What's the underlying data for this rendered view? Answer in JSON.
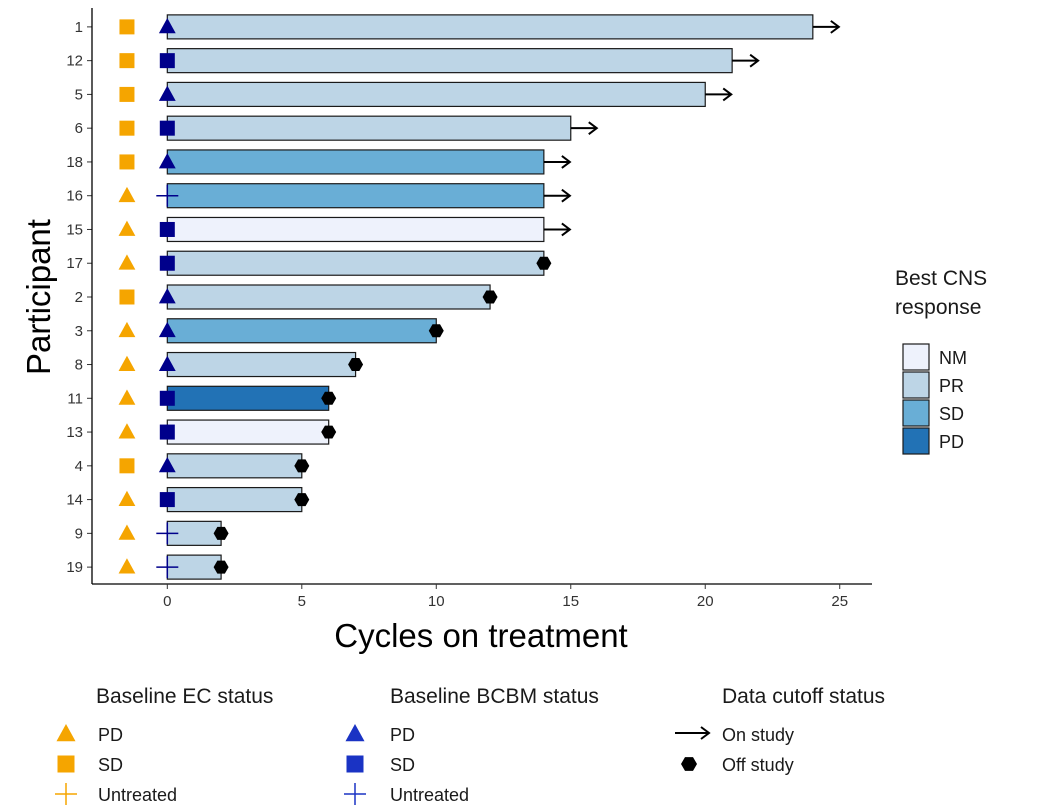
{
  "chart_data": {
    "type": "bar",
    "orientation": "horizontal",
    "xlabel": "Cycles on treatment",
    "ylabel": "Participant",
    "xlim": [
      -2.8,
      26.2
    ],
    "xticks": [
      0,
      5,
      10,
      15,
      20,
      25
    ],
    "grid": false,
    "participants": [
      {
        "id": "1",
        "cycles": 24,
        "cns_response": "PR",
        "ec_status": "SD",
        "bcbm_status": "PD",
        "cutoff": "On study"
      },
      {
        "id": "12",
        "cycles": 21,
        "cns_response": "PR",
        "ec_status": "SD",
        "bcbm_status": "SD",
        "cutoff": "On study"
      },
      {
        "id": "5",
        "cycles": 20,
        "cns_response": "PR",
        "ec_status": "SD",
        "bcbm_status": "PD",
        "cutoff": "On study"
      },
      {
        "id": "6",
        "cycles": 15,
        "cns_response": "PR",
        "ec_status": "SD",
        "bcbm_status": "SD",
        "cutoff": "On study"
      },
      {
        "id": "18",
        "cycles": 14,
        "cns_response": "SD",
        "ec_status": "SD",
        "bcbm_status": "PD",
        "cutoff": "On study"
      },
      {
        "id": "16",
        "cycles": 14,
        "cns_response": "SD",
        "ec_status": "PD",
        "bcbm_status": "Untreated",
        "cutoff": "On study"
      },
      {
        "id": "15",
        "cycles": 14,
        "cns_response": "NM",
        "ec_status": "PD",
        "bcbm_status": "SD",
        "cutoff": "On study"
      },
      {
        "id": "17",
        "cycles": 14,
        "cns_response": "PR",
        "ec_status": "PD",
        "bcbm_status": "SD",
        "cutoff": "Off study"
      },
      {
        "id": "2",
        "cycles": 12,
        "cns_response": "PR",
        "ec_status": "SD",
        "bcbm_status": "PD",
        "cutoff": "Off study"
      },
      {
        "id": "3",
        "cycles": 10,
        "cns_response": "SD",
        "ec_status": "PD",
        "bcbm_status": "PD",
        "cutoff": "Off study"
      },
      {
        "id": "8",
        "cycles": 7,
        "cns_response": "PR",
        "ec_status": "PD",
        "bcbm_status": "PD",
        "cutoff": "Off study"
      },
      {
        "id": "11",
        "cycles": 6,
        "cns_response": "PD",
        "ec_status": "PD",
        "bcbm_status": "SD",
        "cutoff": "Off study"
      },
      {
        "id": "13",
        "cycles": 6,
        "cns_response": "NM",
        "ec_status": "PD",
        "bcbm_status": "SD",
        "cutoff": "Off study"
      },
      {
        "id": "4",
        "cycles": 5,
        "cns_response": "PR",
        "ec_status": "SD",
        "bcbm_status": "PD",
        "cutoff": "Off study"
      },
      {
        "id": "14",
        "cycles": 5,
        "cns_response": "PR",
        "ec_status": "PD",
        "bcbm_status": "SD",
        "cutoff": "Off study"
      },
      {
        "id": "9",
        "cycles": 2,
        "cns_response": "PR",
        "ec_status": "PD",
        "bcbm_status": "Untreated",
        "cutoff": "Off study"
      },
      {
        "id": "19",
        "cycles": 2,
        "cns_response": "PR",
        "ec_status": "PD",
        "bcbm_status": "Untreated",
        "cutoff": "Off study"
      }
    ],
    "legends": {
      "cns": {
        "title_lines": [
          "Best CNS",
          "response"
        ],
        "position": "right",
        "entries": [
          {
            "key": "NM",
            "label": "NM",
            "color": "#eef2fc"
          },
          {
            "key": "PR",
            "label": "PR",
            "color": "#bdd5e6"
          },
          {
            "key": "SD",
            "label": "SD",
            "color": "#69aed6"
          },
          {
            "key": "PD",
            "label": "PD",
            "color": "#2272b5"
          }
        ]
      },
      "ec": {
        "title": "Baseline EC status",
        "position": "bottom-left",
        "color": "#f5a500",
        "entries": [
          {
            "key": "PD",
            "label": "PD",
            "shape": "triangle"
          },
          {
            "key": "SD",
            "label": "SD",
            "shape": "square"
          },
          {
            "key": "Untreated",
            "label": "Untreated",
            "shape": "plus"
          }
        ]
      },
      "bcbm": {
        "title": "Baseline BCBM status",
        "position": "bottom-center",
        "color": "#00008b",
        "legend_color": "#1a33c4",
        "entries": [
          {
            "key": "PD",
            "label": "PD",
            "shape": "triangle"
          },
          {
            "key": "SD",
            "label": "SD",
            "shape": "square"
          },
          {
            "key": "Untreated",
            "label": "Untreated",
            "shape": "plus"
          }
        ]
      },
      "cutoff": {
        "title": "Data cutoff status",
        "position": "bottom-right",
        "entries": [
          {
            "key": "On study",
            "label": "On study",
            "shape": "arrow"
          },
          {
            "key": "Off study",
            "label": "Off study",
            "shape": "hexagon"
          }
        ]
      }
    }
  }
}
